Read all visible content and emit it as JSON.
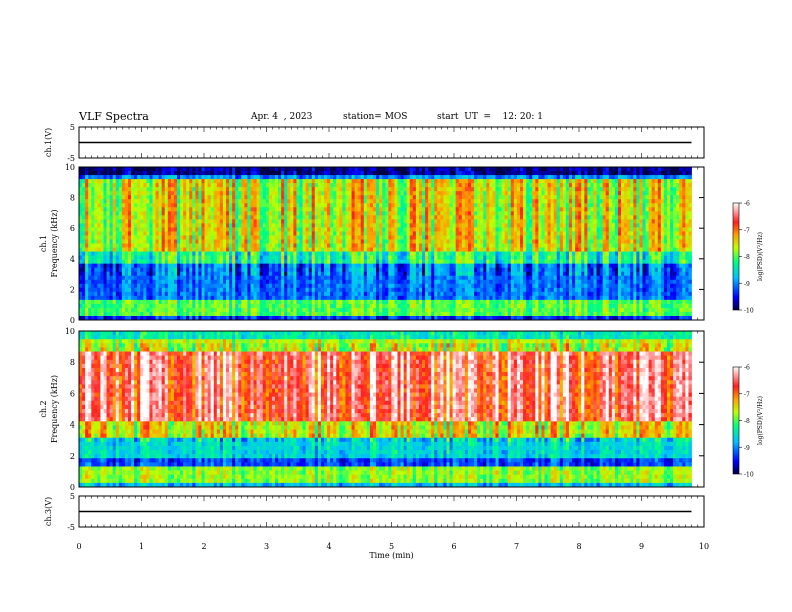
{
  "header": {
    "title": "VLF Spectra",
    "date": "Apr. 4  , 2023",
    "station": "station= MOS",
    "start_ut": "start  UT  =    12: 20: 1"
  },
  "chart_data": [
    {
      "type": "line",
      "panel": "ch1-waveform",
      "ylabel": "ch.1(V)",
      "ylim": [
        -5,
        5
      ],
      "yticks": [
        "5",
        "-5"
      ],
      "xlim": [
        0,
        10
      ],
      "x": [
        0,
        9.8
      ],
      "values": [
        0,
        0
      ],
      "color": "#000000"
    },
    {
      "type": "heatmap",
      "panel": "ch1-spectrogram",
      "ylabel": "ch.1\nFrequency (kHz)",
      "ylim": [
        0,
        10
      ],
      "yticks": [
        "0",
        "2",
        "4",
        "6",
        "8",
        "10"
      ],
      "xlim": [
        0,
        10
      ],
      "data_end_min": 9.8,
      "colorbar": {
        "label": "log(PSD)(V²/Hz)",
        "range": [
          -10,
          -6
        ],
        "ticks": [
          "-6",
          "-7",
          "-8",
          "-9",
          "-10"
        ]
      }
    },
    {
      "type": "heatmap",
      "panel": "ch2-spectrogram",
      "ylabel": "ch.2\nFrequency (kHz)",
      "ylim": [
        0,
        10
      ],
      "yticks": [
        "0",
        "2",
        "4",
        "6",
        "8",
        "10"
      ],
      "xlim": [
        0,
        10
      ],
      "data_end_min": 9.8,
      "colorbar": {
        "label": "log(PSD)(V²/Hz)",
        "range": [
          -10,
          -6
        ],
        "ticks": [
          "-6",
          "-7",
          "-8",
          "-9",
          "-10"
        ]
      }
    },
    {
      "type": "line",
      "panel": "ch3-waveform",
      "ylabel": "ch.3(V)",
      "ylim": [
        -5,
        5
      ],
      "yticks": [
        "5",
        "-5"
      ],
      "xlim": [
        0,
        10
      ],
      "x": [
        0,
        9.8
      ],
      "values": [
        0,
        0
      ],
      "color": "#000000",
      "xlabel": "Time  (min)",
      "xticks": [
        "0",
        "1",
        "2",
        "3",
        "4",
        "5",
        "6",
        "7",
        "8",
        "9",
        "10"
      ]
    }
  ]
}
